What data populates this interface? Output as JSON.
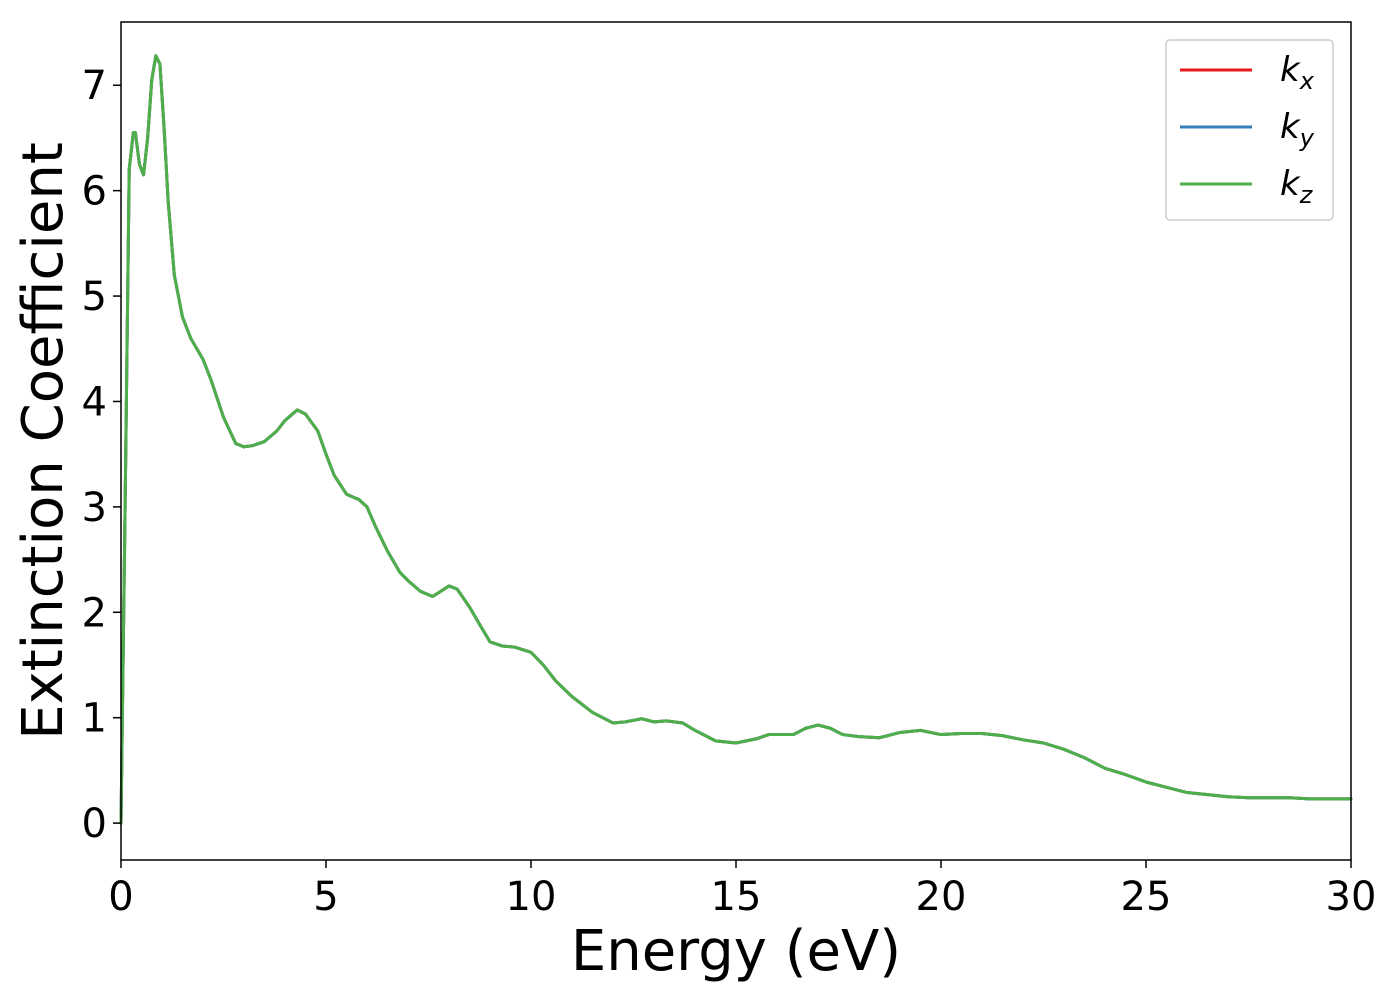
{
  "chart_data": {
    "type": "line",
    "title": "",
    "xlabel": "Energy (eV)",
    "ylabel": "Extinction Coefficient",
    "xlim": [
      0,
      30
    ],
    "ylim": [
      -0.35,
      7.6
    ],
    "xticks": [
      0,
      5,
      10,
      15,
      20,
      25,
      30
    ],
    "yticks": [
      0,
      1,
      2,
      3,
      4,
      5,
      6,
      7
    ],
    "grid": false,
    "legend_position": "top-right",
    "x": [
      0,
      0.1,
      0.2,
      0.3,
      0.35,
      0.45,
      0.55,
      0.65,
      0.75,
      0.85,
      0.95,
      1.05,
      1.15,
      1.3,
      1.5,
      1.7,
      2.0,
      2.2,
      2.5,
      2.8,
      3.0,
      3.2,
      3.5,
      3.8,
      4.0,
      4.3,
      4.5,
      4.8,
      5.0,
      5.2,
      5.5,
      5.8,
      6.0,
      6.2,
      6.5,
      6.8,
      7.0,
      7.3,
      7.6,
      7.8,
      8.0,
      8.2,
      8.5,
      8.8,
      9.0,
      9.3,
      9.6,
      10.0,
      10.3,
      10.6,
      11.0,
      11.5,
      12.0,
      12.3,
      12.7,
      13.0,
      13.3,
      13.7,
      14.0,
      14.5,
      15.0,
      15.5,
      15.8,
      16.0,
      16.4,
      16.7,
      17.0,
      17.3,
      17.6,
      18.0,
      18.5,
      19.0,
      19.5,
      20.0,
      20.5,
      21.0,
      21.5,
      22.0,
      22.5,
      23.0,
      23.5,
      24.0,
      24.5,
      25.0,
      25.5,
      26.0,
      26.5,
      27.0,
      27.5,
      28.0,
      28.5,
      29.0,
      29.5,
      30.0
    ],
    "series": [
      {
        "name": "k_x",
        "color": "#e41a1c",
        "y": [
          0.0,
          3.0,
          6.2,
          6.55,
          6.55,
          6.25,
          6.15,
          6.5,
          7.05,
          7.28,
          7.2,
          6.6,
          5.9,
          5.2,
          4.8,
          4.6,
          4.4,
          4.2,
          3.85,
          3.6,
          3.57,
          3.58,
          3.62,
          3.72,
          3.82,
          3.92,
          3.88,
          3.72,
          3.5,
          3.3,
          3.12,
          3.07,
          3.0,
          2.82,
          2.58,
          2.38,
          2.3,
          2.2,
          2.15,
          2.2,
          2.25,
          2.22,
          2.05,
          1.85,
          1.72,
          1.68,
          1.67,
          1.62,
          1.5,
          1.35,
          1.2,
          1.05,
          0.95,
          0.96,
          0.99,
          0.96,
          0.97,
          0.95,
          0.88,
          0.78,
          0.76,
          0.8,
          0.84,
          0.84,
          0.84,
          0.9,
          0.93,
          0.9,
          0.84,
          0.82,
          0.81,
          0.86,
          0.88,
          0.84,
          0.85,
          0.85,
          0.83,
          0.79,
          0.76,
          0.7,
          0.62,
          0.52,
          0.46,
          0.39,
          0.34,
          0.29,
          0.27,
          0.25,
          0.24,
          0.24,
          0.24,
          0.23,
          0.23,
          0.23
        ]
      },
      {
        "name": "k_y",
        "color": "#377eb8",
        "y": [
          0.0,
          3.0,
          6.2,
          6.55,
          6.55,
          6.25,
          6.15,
          6.5,
          7.05,
          7.28,
          7.2,
          6.6,
          5.9,
          5.2,
          4.8,
          4.6,
          4.4,
          4.2,
          3.85,
          3.6,
          3.57,
          3.58,
          3.62,
          3.72,
          3.82,
          3.92,
          3.88,
          3.72,
          3.5,
          3.3,
          3.12,
          3.07,
          3.0,
          2.82,
          2.58,
          2.38,
          2.3,
          2.2,
          2.15,
          2.2,
          2.25,
          2.22,
          2.05,
          1.85,
          1.72,
          1.68,
          1.67,
          1.62,
          1.5,
          1.35,
          1.2,
          1.05,
          0.95,
          0.96,
          0.99,
          0.96,
          0.97,
          0.95,
          0.88,
          0.78,
          0.76,
          0.8,
          0.84,
          0.84,
          0.84,
          0.9,
          0.93,
          0.9,
          0.84,
          0.82,
          0.81,
          0.86,
          0.88,
          0.84,
          0.85,
          0.85,
          0.83,
          0.79,
          0.76,
          0.7,
          0.62,
          0.52,
          0.46,
          0.39,
          0.34,
          0.29,
          0.27,
          0.25,
          0.24,
          0.24,
          0.24,
          0.23,
          0.23,
          0.23
        ]
      },
      {
        "name": "k_z",
        "color": "#4daf4a",
        "y": [
          0.0,
          3.0,
          6.2,
          6.55,
          6.55,
          6.25,
          6.15,
          6.5,
          7.05,
          7.28,
          7.2,
          6.6,
          5.9,
          5.2,
          4.8,
          4.6,
          4.4,
          4.2,
          3.85,
          3.6,
          3.57,
          3.58,
          3.62,
          3.72,
          3.82,
          3.92,
          3.88,
          3.72,
          3.5,
          3.3,
          3.12,
          3.07,
          3.0,
          2.82,
          2.58,
          2.38,
          2.3,
          2.2,
          2.15,
          2.2,
          2.25,
          2.22,
          2.05,
          1.85,
          1.72,
          1.68,
          1.67,
          1.62,
          1.5,
          1.35,
          1.2,
          1.05,
          0.95,
          0.96,
          0.99,
          0.96,
          0.97,
          0.95,
          0.88,
          0.78,
          0.76,
          0.8,
          0.84,
          0.84,
          0.84,
          0.9,
          0.93,
          0.9,
          0.84,
          0.82,
          0.81,
          0.86,
          0.88,
          0.84,
          0.85,
          0.85,
          0.83,
          0.79,
          0.76,
          0.7,
          0.62,
          0.52,
          0.46,
          0.39,
          0.34,
          0.29,
          0.27,
          0.25,
          0.24,
          0.24,
          0.24,
          0.23,
          0.23,
          0.23
        ]
      }
    ],
    "legend": [
      {
        "base": "k",
        "sub": "x",
        "color": "#e41a1c"
      },
      {
        "base": "k",
        "sub": "y",
        "color": "#377eb8"
      },
      {
        "base": "k",
        "sub": "z",
        "color": "#4daf4a"
      }
    ]
  }
}
